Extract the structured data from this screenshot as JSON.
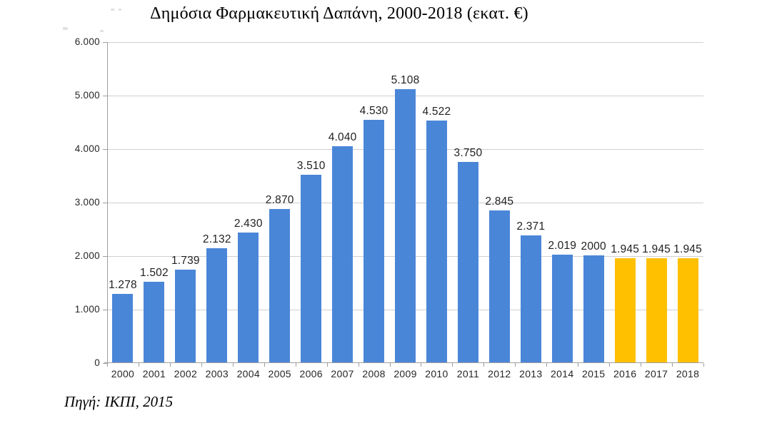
{
  "chart": {
    "title": "Δημόσια Φαρμακευτική Δαπάνη, 2000-2018 (εκατ. €)"
  },
  "source": "Πηγή: ΙΚΠΙ, 2015",
  "colors": {
    "bar_actual": "#4A86D8",
    "bar_projected": "#FFC000",
    "gridline": "#CFCFCF",
    "axis": "#9E9E9E",
    "value_label_text": "#1F1F1F",
    "axis_label_text": "#262626"
  },
  "chart_data": {
    "type": "bar",
    "title": "Δημόσια Φαρμακευτική Δαπάνη, 2000-2018 (εκατ. €)",
    "xlabel": "",
    "ylabel": "",
    "categories": [
      "2000",
      "2001",
      "2002",
      "2003",
      "2004",
      "2005",
      "2006",
      "2007",
      "2008",
      "2009",
      "2010",
      "2011",
      "2012",
      "2013",
      "2014",
      "2015",
      "2016",
      "2017",
      "2018"
    ],
    "values": [
      1278,
      1502,
      1739,
      2132,
      2430,
      2870,
      3510,
      4040,
      4530,
      5108,
      4522,
      3750,
      2845,
      2371,
      2019,
      2000,
      1945,
      1945,
      1945
    ],
    "value_labels": [
      "1.278",
      "1.502",
      "1.739",
      "2.132",
      "2.430",
      "2.870",
      "3.510",
      "4.040",
      "4.530",
      "5.108",
      "4.522",
      "3.750",
      "2.845",
      "2.371",
      "2.019",
      "2000",
      "1.945",
      "1.945",
      "1.945"
    ],
    "projected_categories": [
      "2016",
      "2017",
      "2018"
    ],
    "y_ticks": [
      "0",
      "1.000",
      "2.000",
      "3.000",
      "4.000",
      "5.000",
      "6.000"
    ],
    "ylim": [
      0,
      6000
    ],
    "grid": true,
    "legend": false
  }
}
